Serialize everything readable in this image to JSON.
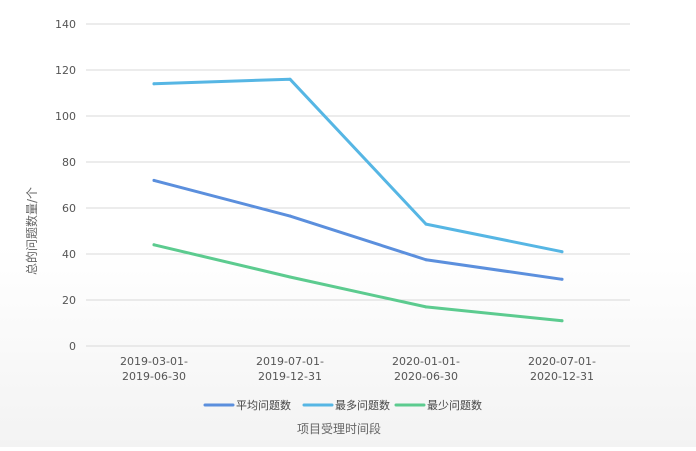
{
  "chart_data": {
    "type": "line",
    "categories": [
      [
        "2019-03-01-",
        "2019-06-30"
      ],
      [
        "2019-07-01-",
        "2019-12-31"
      ],
      [
        "2020-01-01-",
        "2020-06-30"
      ],
      [
        "2020-07-01-",
        "2020-12-31"
      ]
    ],
    "series": [
      {
        "name": "平均问题数",
        "color": "#5b8fdd",
        "values": [
          72,
          56.5,
          37.5,
          29
        ]
      },
      {
        "name": "最多问题数",
        "color": "#56b6e4",
        "values": [
          114,
          116,
          53,
          41
        ]
      },
      {
        "name": "最少问题数",
        "color": "#5ccb8f",
        "values": [
          44,
          30,
          17,
          11
        ]
      }
    ],
    "xlabel": "项目受理时间段",
    "ylabel": "总的问题数量/个",
    "ylim": [
      0,
      140
    ],
    "yticks": [
      0,
      20,
      40,
      60,
      80,
      100,
      120,
      140
    ],
    "grid": true,
    "legend_position": "bottom"
  }
}
